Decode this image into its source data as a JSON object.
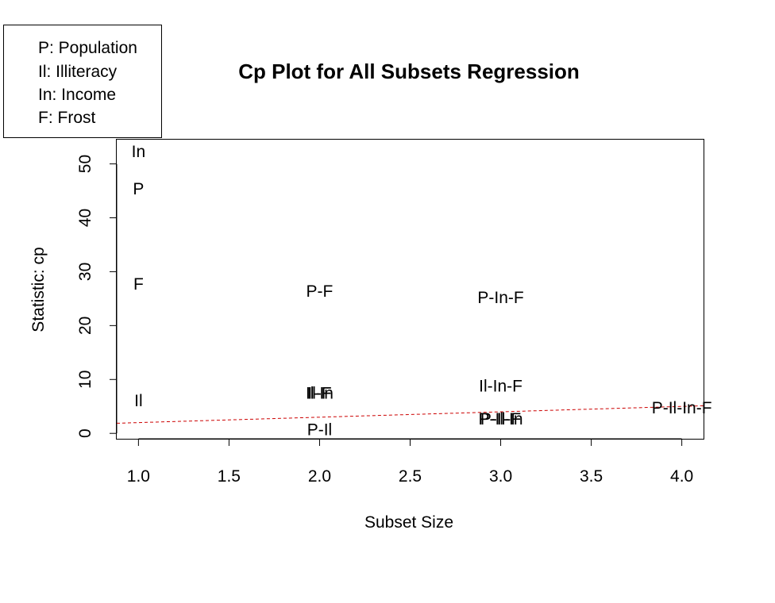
{
  "legend": {
    "entries": [
      "P: Population",
      "Il: Illiteracy",
      "In: Income",
      "F: Frost"
    ]
  },
  "chart_data": {
    "type": "scatter",
    "title": "Cp Plot for All Subsets Regression",
    "xlabel": "Subset Size",
    "ylabel": "Statistic: cp",
    "xlim": [
      0.88,
      4.12
    ],
    "ylim": [
      -1,
      54.5
    ],
    "x_ticks": [
      "1.0",
      "1.5",
      "2.0",
      "2.5",
      "3.0",
      "3.5",
      "4.0"
    ],
    "x_tick_values": [
      1.0,
      1.5,
      2.0,
      2.5,
      3.0,
      3.5,
      4.0
    ],
    "y_ticks": [
      "0",
      "10",
      "20",
      "30",
      "40",
      "50"
    ],
    "y_tick_values": [
      0,
      10,
      20,
      30,
      40,
      50
    ],
    "grid": false,
    "legend_position": "top-left",
    "points": [
      {
        "x": 1,
        "y": 52.2,
        "label": "In"
      },
      {
        "x": 1,
        "y": 45.3,
        "label": "P"
      },
      {
        "x": 1,
        "y": 27.6,
        "label": "F"
      },
      {
        "x": 1,
        "y": 6.0,
        "label": "Il"
      },
      {
        "x": 2,
        "y": 26.3,
        "label": "P-F"
      },
      {
        "x": 2,
        "y": 7.4,
        "label": "Il-F"
      },
      {
        "x": 2,
        "y": 7.4,
        "label": "Il-In"
      },
      {
        "x": 2,
        "y": 7.4,
        "label": "Il-F"
      },
      {
        "x": 2,
        "y": 0.6,
        "label": "P-Il"
      },
      {
        "x": 3,
        "y": 25.1,
        "label": "P-In-F"
      },
      {
        "x": 3,
        "y": 8.7,
        "label": "Il-In-F"
      },
      {
        "x": 3,
        "y": 2.6,
        "label": "P-Il-F"
      },
      {
        "x": 3,
        "y": 2.6,
        "label": "P-Il-In"
      },
      {
        "x": 4,
        "y": 4.7,
        "label": "P-Il-In-F"
      }
    ],
    "reference_line": {
      "intercept": 1,
      "slope": 1,
      "color": "#cc0000",
      "style": "dashed"
    }
  }
}
